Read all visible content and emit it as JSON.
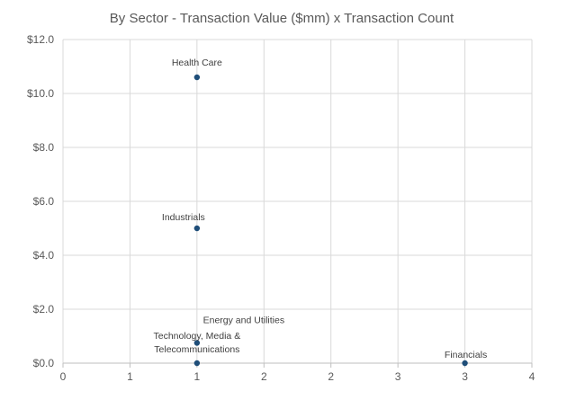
{
  "chart_data": {
    "type": "scatter",
    "title": "By Sector - Transaction Value ($mm) x Transaction Count",
    "xlabel": "",
    "ylabel": "",
    "xlim": [
      0,
      3.5
    ],
    "ylim": [
      0,
      12
    ],
    "x_tick_labels": [
      "0",
      "1",
      "1",
      "2",
      "2",
      "3",
      "3",
      "4"
    ],
    "y_tick_labels": [
      "$0.0",
      "$2.0",
      "$4.0",
      "$6.0",
      "$8.0",
      "$10.0",
      "$12.0"
    ],
    "y_ticks": [
      0,
      2,
      4,
      6,
      8,
      10,
      12
    ],
    "grid": true,
    "marker_color": "#1f4e79",
    "points": [
      {
        "label": "Health Care",
        "x": 1,
        "y": 10.6
      },
      {
        "label": "Industrials",
        "x": 1,
        "y": 5.0
      },
      {
        "label": "Energy and Utilities",
        "x": 1,
        "y": 0.75
      },
      {
        "label": "Technology, Media &",
        "label2": "Telecommunications",
        "x": 1,
        "y": 0.0
      },
      {
        "label": "Financials",
        "x": 3,
        "y": 0.0
      }
    ]
  }
}
